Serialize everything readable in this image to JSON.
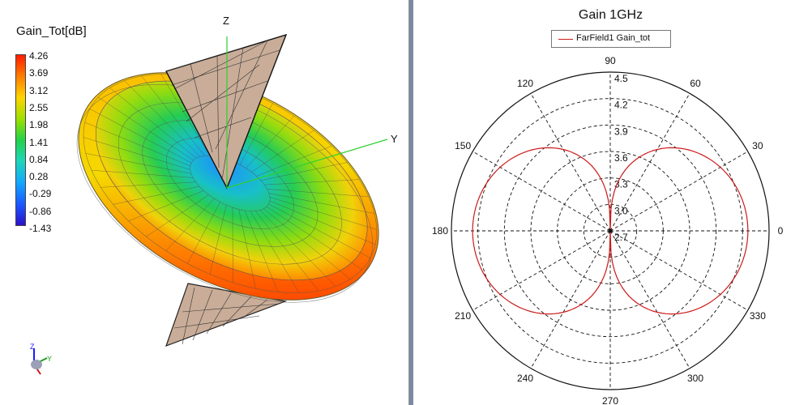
{
  "left_view": {
    "title": "Gain_Tot[dB]",
    "colorbar_labels": [
      "4.26",
      "3.69",
      "3.12",
      "2.55",
      "1.98",
      "1.41",
      "0.84",
      "0.28",
      "-0.29",
      "-0.86",
      "-1.43"
    ],
    "axes": {
      "z": "Z",
      "y": "Y"
    },
    "triad": {
      "z": "Z",
      "y": "Y"
    }
  },
  "right_view": {
    "title": "Gain 1GHz",
    "legend": "FarField1 Gain_tot",
    "angle_labels": [
      "0",
      "30",
      "60",
      "90",
      "120",
      "150",
      "180",
      "210",
      "240",
      "270",
      "300",
      "330"
    ],
    "radial_labels": [
      "2.7",
      "3.0",
      "3.3",
      "3.6",
      "3.9",
      "4.2",
      "4.5"
    ]
  },
  "chart_data": {
    "type": "polar",
    "title": "Gain 1GHz",
    "series": [
      {
        "name": "FarField1 Gain_tot",
        "color": "#cc1a1a",
        "angles_deg": [
          0,
          10,
          20,
          30,
          40,
          50,
          60,
          70,
          80,
          90,
          100,
          110,
          120,
          130,
          140,
          150,
          160,
          170,
          180,
          190,
          200,
          210,
          220,
          230,
          240,
          250,
          260,
          270,
          280,
          290,
          300,
          310,
          320,
          330,
          340,
          350
        ],
        "values": [
          4.26,
          4.25,
          4.21,
          4.14,
          4.03,
          3.86,
          3.6,
          3.22,
          2.8,
          2.7,
          2.8,
          3.22,
          3.6,
          3.86,
          4.03,
          4.14,
          4.21,
          4.25,
          4.26,
          4.25,
          4.21,
          4.14,
          4.03,
          3.86,
          3.6,
          3.22,
          2.8,
          2.7,
          2.8,
          3.22,
          3.6,
          3.86,
          4.03,
          4.14,
          4.21,
          4.25
        ]
      }
    ],
    "r_range": [
      2.7,
      4.5
    ],
    "r_ticks": [
      2.7,
      3.0,
      3.3,
      3.6,
      3.9,
      4.2,
      4.5
    ],
    "angle_ticks": [
      0,
      30,
      60,
      90,
      120,
      150,
      180,
      210,
      240,
      270,
      300,
      330
    ],
    "grid": true,
    "legend_position": "top"
  }
}
